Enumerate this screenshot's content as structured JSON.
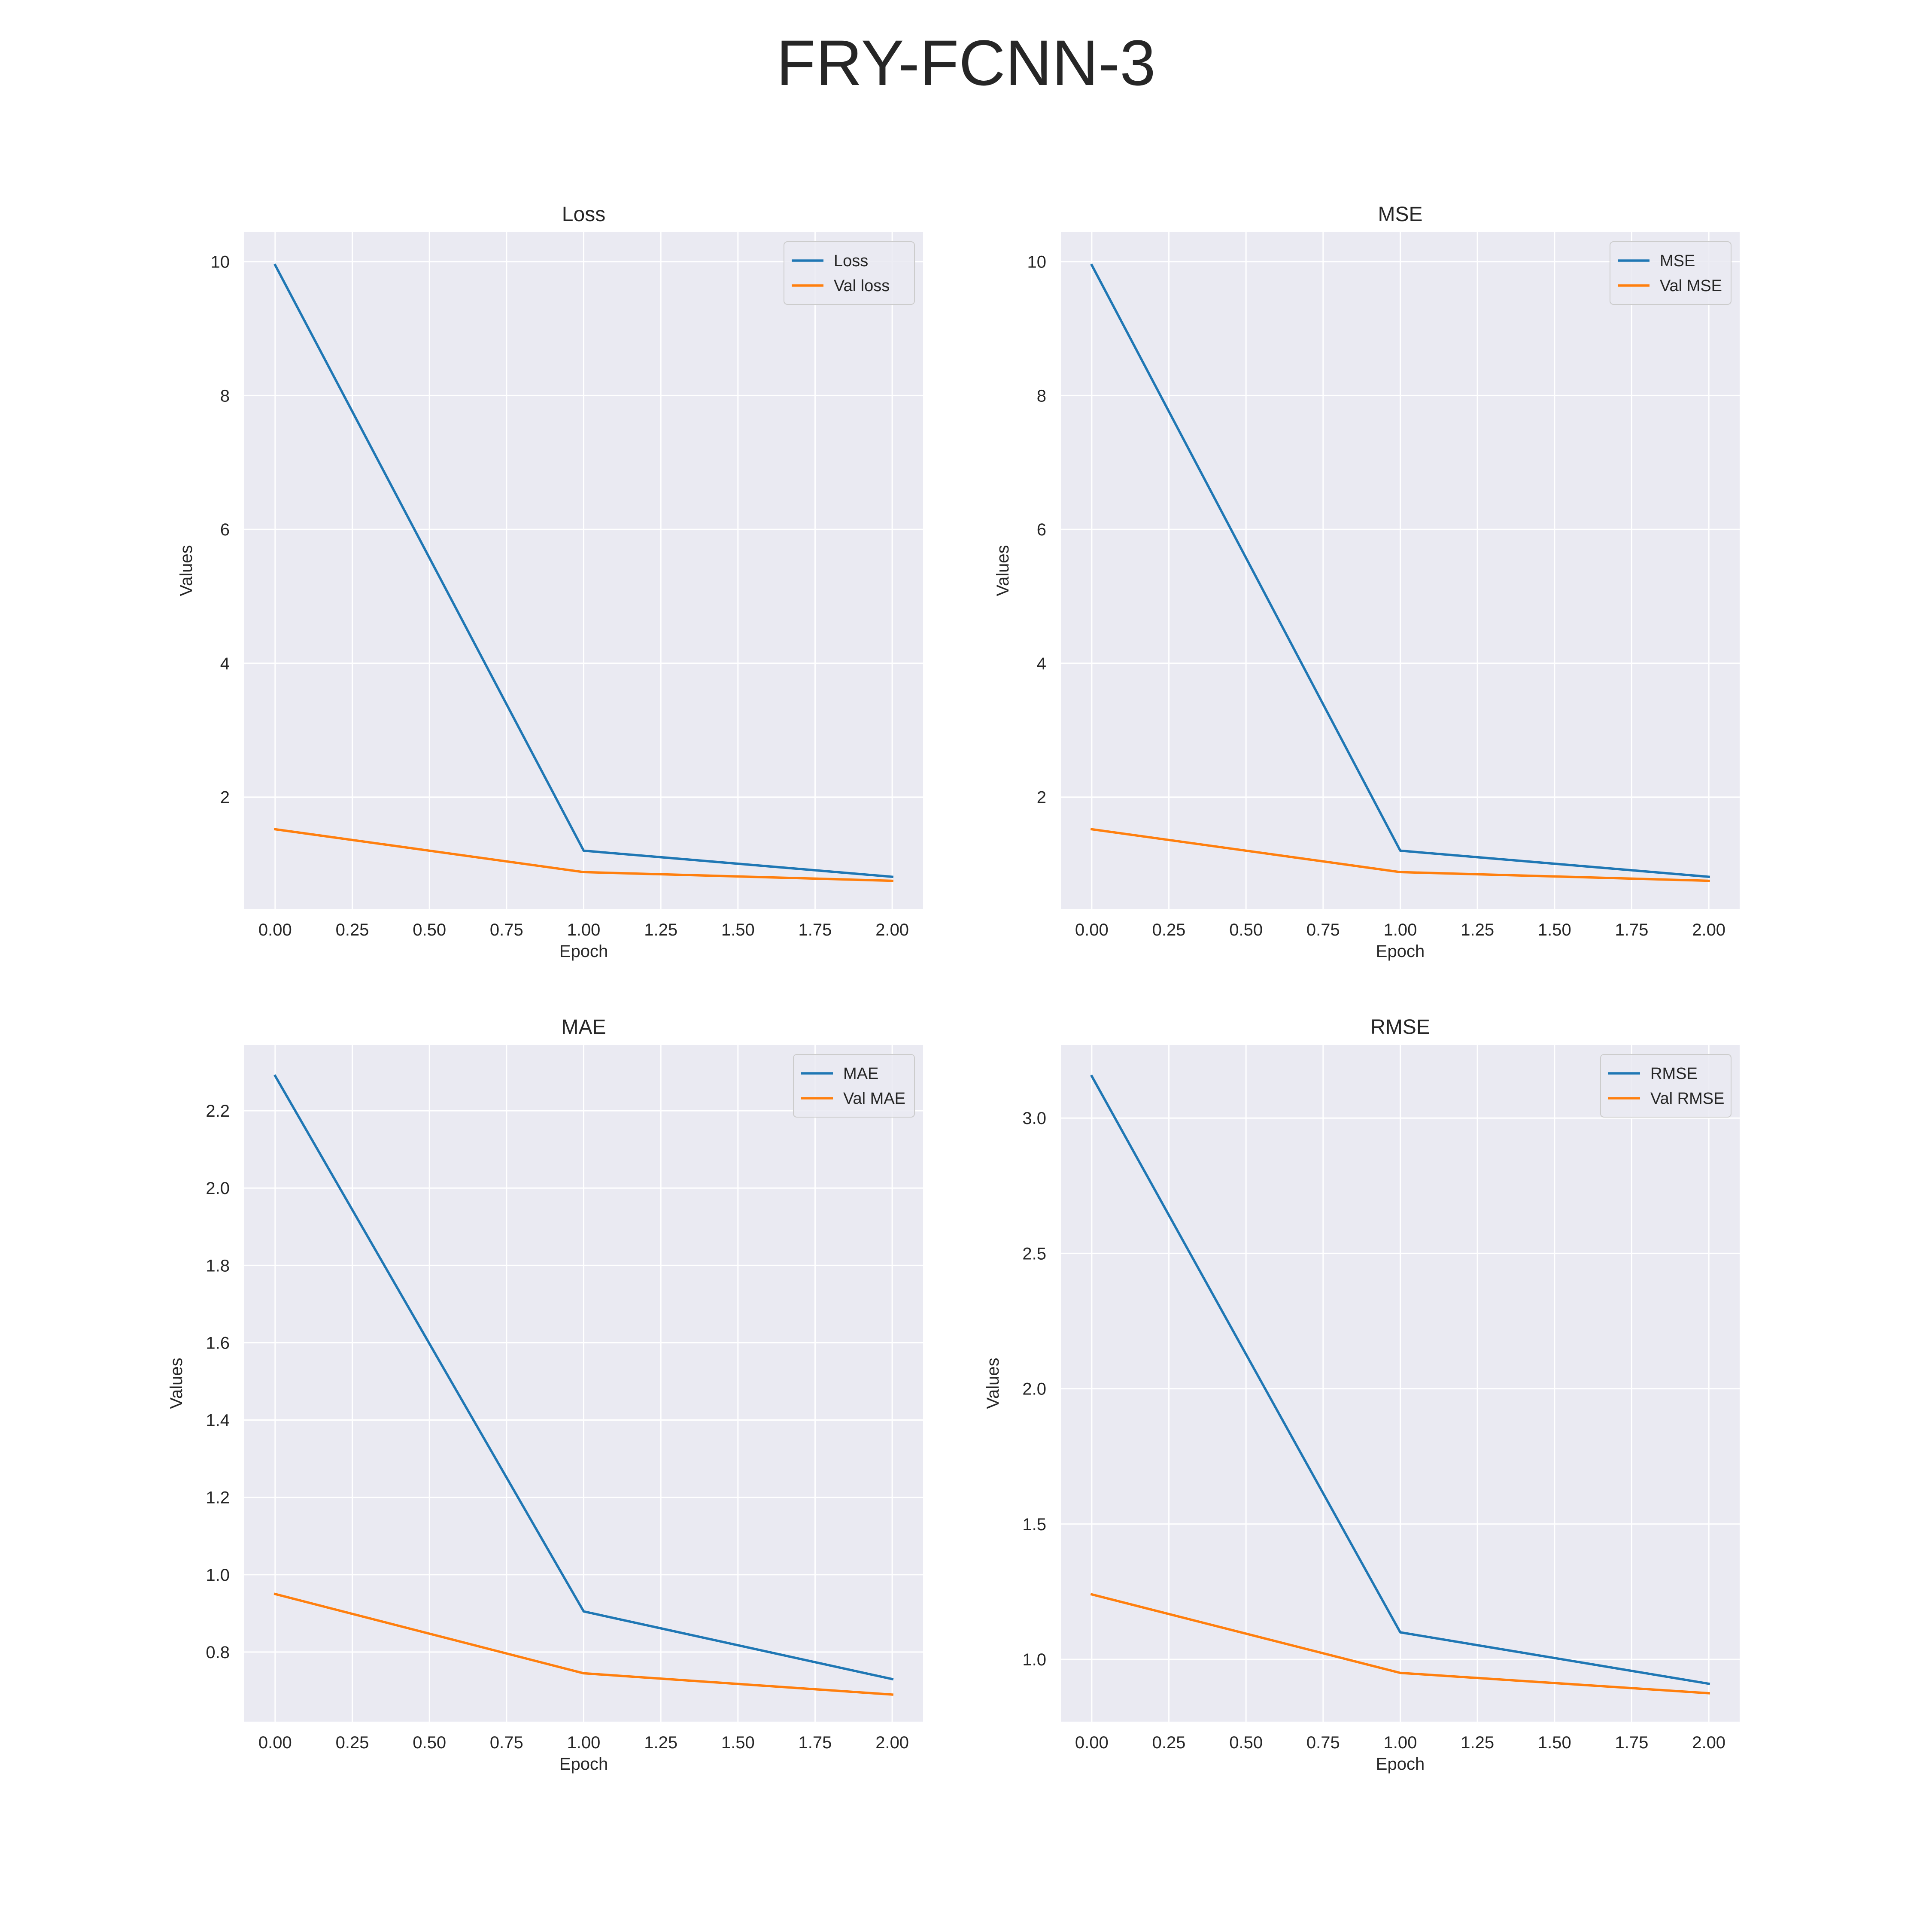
{
  "figure": {
    "title": "FRY-FCNN-3"
  },
  "colors": {
    "train": "#1f77b4",
    "val": "#ff7f0e",
    "plot_background": "#eaeaf2",
    "grid": "#ffffff",
    "text": "#262626"
  },
  "chart_data": [
    {
      "type": "line",
      "title": "Loss",
      "xlabel": "Epoch",
      "ylabel": "Values",
      "x": [
        0,
        1,
        2
      ],
      "xlim": [
        -0.1,
        2.1
      ],
      "ylim": [
        0.33,
        10.44
      ],
      "xticks": [
        0.0,
        0.25,
        0.5,
        0.75,
        1.0,
        1.25,
        1.5,
        1.75,
        2.0
      ],
      "xtick_labels": [
        "0.00",
        "0.25",
        "0.50",
        "0.75",
        "1.00",
        "1.25",
        "1.50",
        "1.75",
        "2.00"
      ],
      "yticks": [
        2,
        4,
        6,
        8,
        10
      ],
      "ytick_labels": [
        "2",
        "4",
        "6",
        "8",
        "10"
      ],
      "grid": true,
      "legend_position": "upper right",
      "series": [
        {
          "name": "Loss",
          "color_key": "train",
          "values": [
            9.95,
            1.2,
            0.81
          ]
        },
        {
          "name": "Val loss",
          "color_key": "val",
          "values": [
            1.52,
            0.88,
            0.75
          ]
        }
      ]
    },
    {
      "type": "line",
      "title": "MSE",
      "xlabel": "Epoch",
      "ylabel": "Values",
      "x": [
        0,
        1,
        2
      ],
      "xlim": [
        -0.1,
        2.1
      ],
      "ylim": [
        0.33,
        10.44
      ],
      "xticks": [
        0.0,
        0.25,
        0.5,
        0.75,
        1.0,
        1.25,
        1.5,
        1.75,
        2.0
      ],
      "xtick_labels": [
        "0.00",
        "0.25",
        "0.50",
        "0.75",
        "1.00",
        "1.25",
        "1.50",
        "1.75",
        "2.00"
      ],
      "yticks": [
        2,
        4,
        6,
        8,
        10
      ],
      "ytick_labels": [
        "2",
        "4",
        "6",
        "8",
        "10"
      ],
      "grid": true,
      "legend_position": "upper right",
      "series": [
        {
          "name": "MSE",
          "color_key": "train",
          "values": [
            9.95,
            1.2,
            0.81
          ]
        },
        {
          "name": "Val MSE",
          "color_key": "val",
          "values": [
            1.52,
            0.88,
            0.75
          ]
        }
      ]
    },
    {
      "type": "line",
      "title": "MAE",
      "xlabel": "Epoch",
      "ylabel": "Values",
      "x": [
        0,
        1,
        2
      ],
      "xlim": [
        -0.1,
        2.1
      ],
      "ylim": [
        0.62,
        2.37
      ],
      "xticks": [
        0.0,
        0.25,
        0.5,
        0.75,
        1.0,
        1.25,
        1.5,
        1.75,
        2.0
      ],
      "xtick_labels": [
        "0.00",
        "0.25",
        "0.50",
        "0.75",
        "1.00",
        "1.25",
        "1.50",
        "1.75",
        "2.00"
      ],
      "yticks": [
        0.8,
        1.0,
        1.2,
        1.4,
        1.6,
        1.8,
        2.0,
        2.2
      ],
      "ytick_labels": [
        "0.8",
        "1.0",
        "1.2",
        "1.4",
        "1.6",
        "1.8",
        "2.0",
        "2.2"
      ],
      "grid": true,
      "legend_position": "upper right",
      "series": [
        {
          "name": "MAE",
          "color_key": "train",
          "values": [
            2.29,
            0.905,
            0.73
          ]
        },
        {
          "name": "Val MAE",
          "color_key": "val",
          "values": [
            0.95,
            0.745,
            0.69
          ]
        }
      ]
    },
    {
      "type": "line",
      "title": "RMSE",
      "xlabel": "Epoch",
      "ylabel": "Values",
      "x": [
        0,
        1,
        2
      ],
      "xlim": [
        -0.1,
        2.1
      ],
      "ylim": [
        0.77,
        3.27
      ],
      "xticks": [
        0.0,
        0.25,
        0.5,
        0.75,
        1.0,
        1.25,
        1.5,
        1.75,
        2.0
      ],
      "xtick_labels": [
        "0.00",
        "0.25",
        "0.50",
        "0.75",
        "1.00",
        "1.25",
        "1.50",
        "1.75",
        "2.00"
      ],
      "yticks": [
        1.0,
        1.5,
        2.0,
        2.5,
        3.0
      ],
      "ytick_labels": [
        "1.0",
        "1.5",
        "2.0",
        "2.5",
        "3.0"
      ],
      "grid": true,
      "legend_position": "upper right",
      "series": [
        {
          "name": "RMSE",
          "color_key": "train",
          "values": [
            3.155,
            1.1,
            0.91
          ]
        },
        {
          "name": "Val RMSE",
          "color_key": "val",
          "values": [
            1.24,
            0.95,
            0.875
          ]
        }
      ]
    }
  ]
}
